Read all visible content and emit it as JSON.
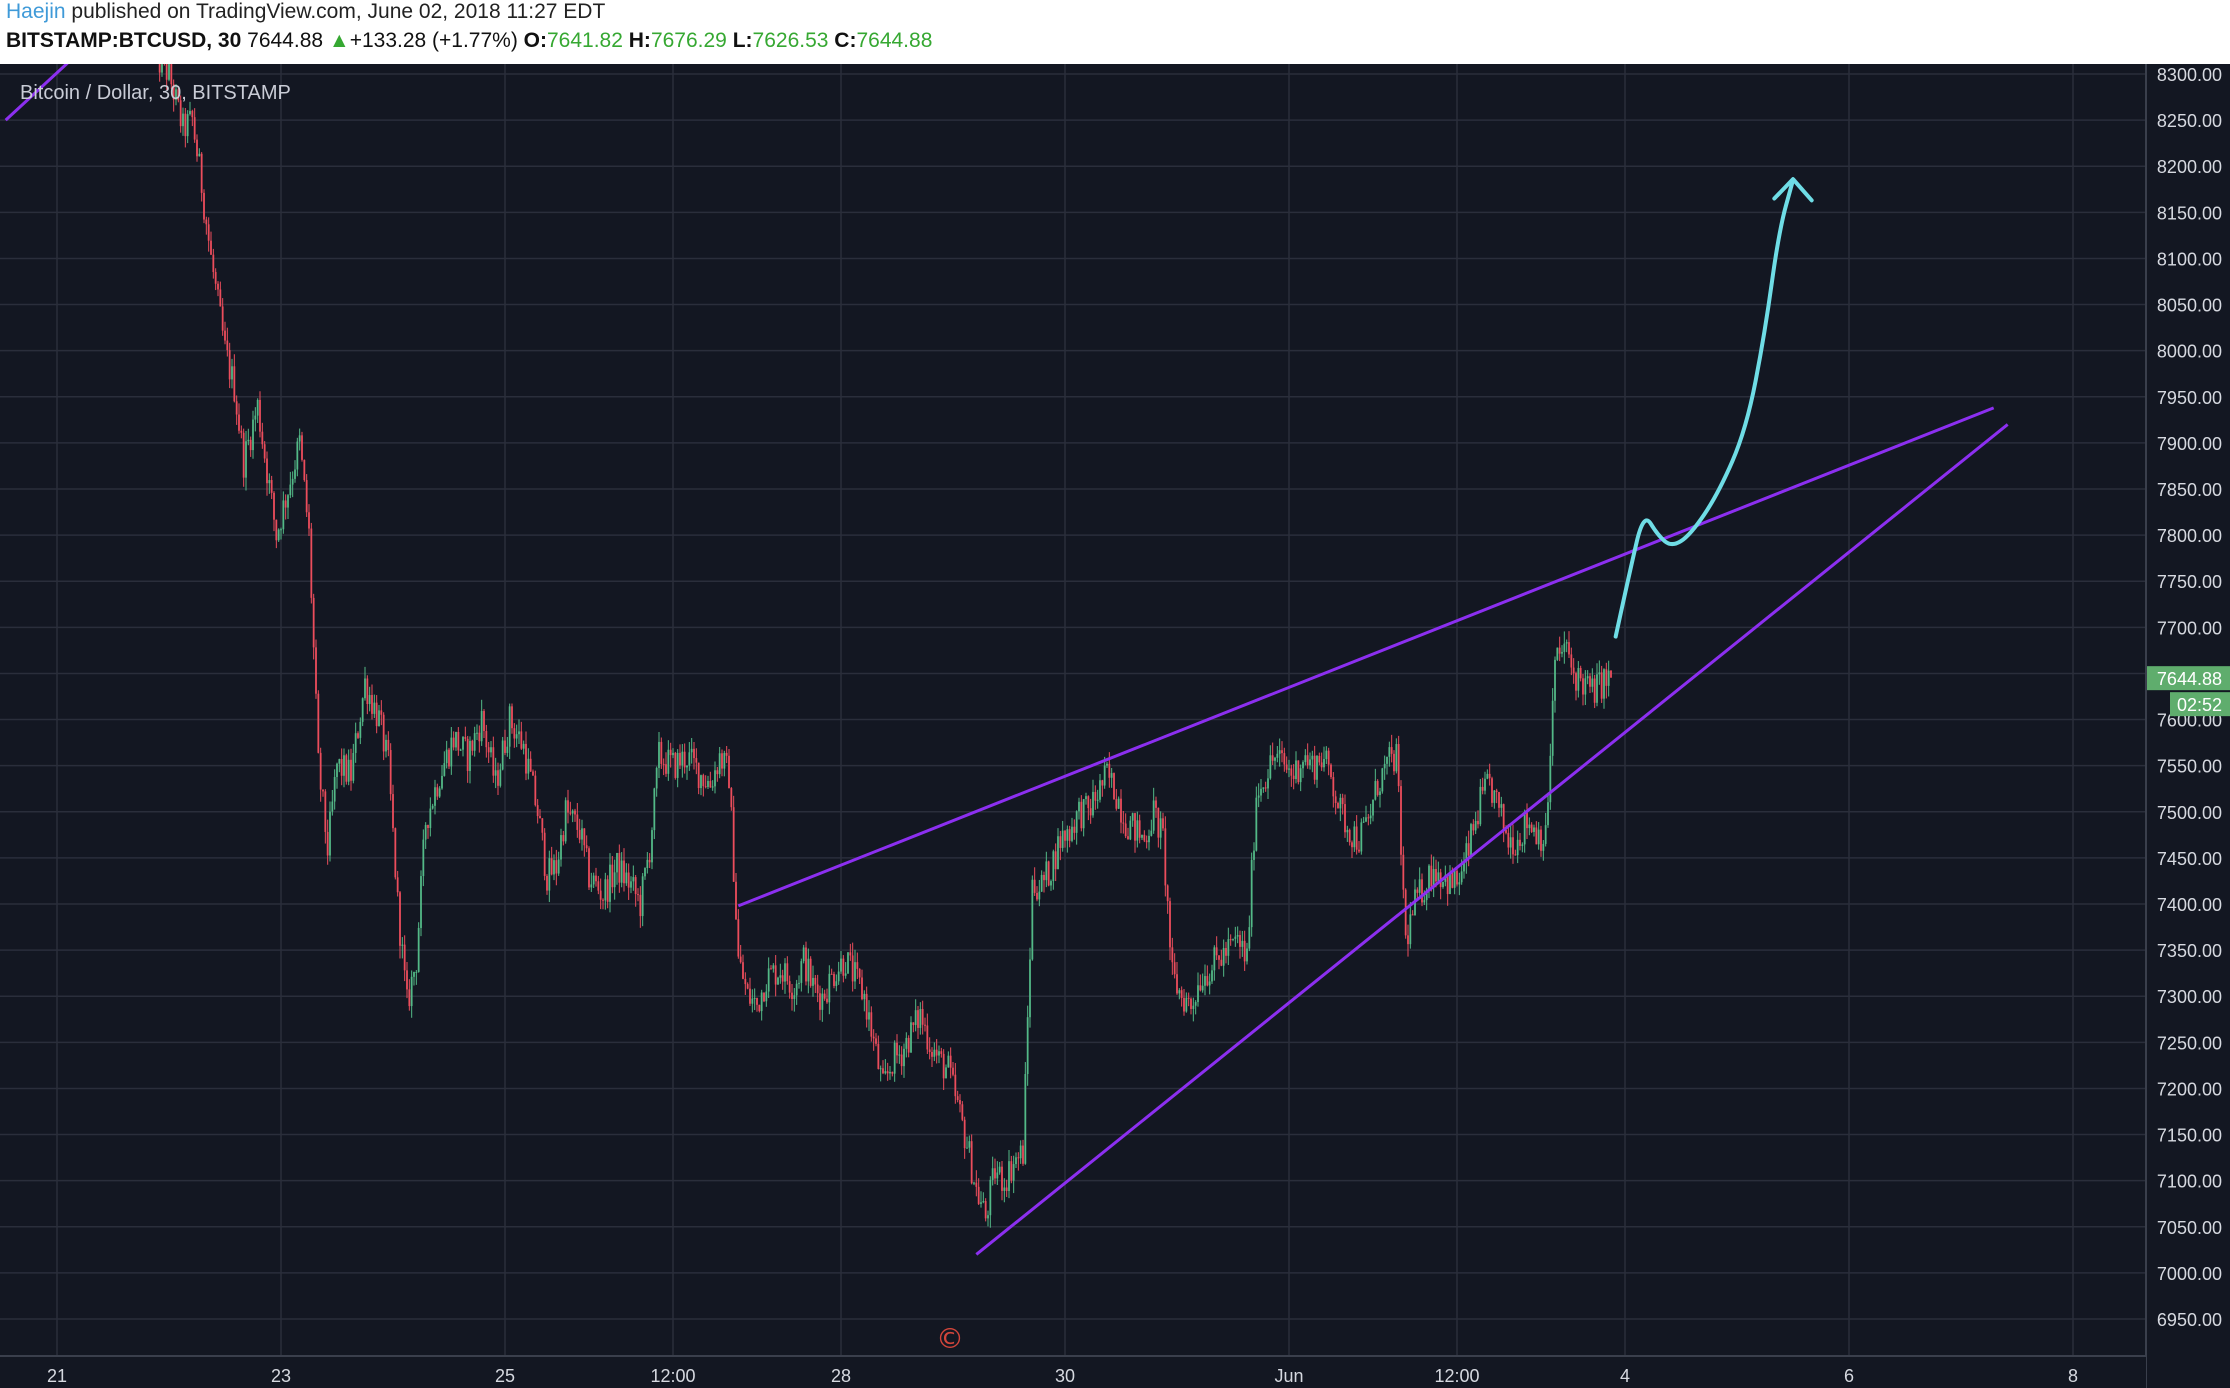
{
  "header": {
    "author": "Haejin",
    "published_text": "published on TradingView.com, June 02, 2018 11:27 EDT",
    "symbol": "BITSTAMP:BTCUSD, 30",
    "last_price": "7644.88",
    "change_arrow": "▲",
    "change": "+133.28 (+1.77%)",
    "open_label": "O:",
    "open": "7641.82",
    "high_label": "H:",
    "high": "7676.29",
    "low_label": "L:",
    "low": "7626.53",
    "close_label": "C:",
    "close": "7644.88"
  },
  "chart_data": {
    "type": "candlestick",
    "title": "Bitcoin / Dollar, 30, BITSTAMP",
    "ylim": [
      6925,
      8310
    ],
    "y_ticks": [
      "8300.00",
      "8250.00",
      "8200.00",
      "8150.00",
      "8100.00",
      "8050.00",
      "8000.00",
      "7950.00",
      "7900.00",
      "7850.00",
      "7800.00",
      "7750.00",
      "7700.00",
      "7650.00",
      "7600.00",
      "7550.00",
      "7500.00",
      "7450.00",
      "7400.00",
      "7350.00",
      "7300.00",
      "7250.00",
      "7200.00",
      "7150.00",
      "7100.00",
      "7050.00",
      "7000.00",
      "6950.00"
    ],
    "time_range_hours": [
      0,
      432
    ],
    "x_ticks": [
      {
        "label": "21",
        "t": 0
      },
      {
        "label": "23",
        "t": 48
      },
      {
        "label": "25",
        "t": 96
      },
      {
        "label": "12:00",
        "t": 132
      },
      {
        "label": "28",
        "t": 168
      },
      {
        "label": "30",
        "t": 216
      },
      {
        "label": "Jun",
        "t": 264
      },
      {
        "label": "12:00",
        "t": 300
      },
      {
        "label": "4",
        "t": 336
      },
      {
        "label": "6",
        "t": 384
      },
      {
        "label": "8",
        "t": 432
      }
    ],
    "price_path": [
      [
        21,
        8320
      ],
      [
        24,
        8300
      ],
      [
        27,
        8240
      ],
      [
        29,
        8250
      ],
      [
        31,
        8180
      ],
      [
        33,
        8100
      ],
      [
        36,
        8000
      ],
      [
        38,
        7960
      ],
      [
        40,
        7880
      ],
      [
        43,
        7940
      ],
      [
        45,
        7870
      ],
      [
        47,
        7800
      ],
      [
        49,
        7840
      ],
      [
        52,
        7900
      ],
      [
        54,
        7800
      ],
      [
        56,
        7550
      ],
      [
        58,
        7460
      ],
      [
        60,
        7550
      ],
      [
        63,
        7540
      ],
      [
        66,
        7640
      ],
      [
        69,
        7600
      ],
      [
        71,
        7550
      ],
      [
        73,
        7400
      ],
      [
        75,
        7290
      ],
      [
        77,
        7340
      ],
      [
        79,
        7490
      ],
      [
        82,
        7540
      ],
      [
        85,
        7580
      ],
      [
        88,
        7560
      ],
      [
        91,
        7600
      ],
      [
        94,
        7530
      ],
      [
        97,
        7600
      ],
      [
        100,
        7570
      ],
      [
        103,
        7500
      ],
      [
        105,
        7430
      ],
      [
        107,
        7440
      ],
      [
        109,
        7500
      ],
      [
        112,
        7480
      ],
      [
        114,
        7430
      ],
      [
        117,
        7410
      ],
      [
        120,
        7440
      ],
      [
        123,
        7420
      ],
      [
        125,
        7400
      ],
      [
        127,
        7460
      ],
      [
        129,
        7560
      ],
      [
        132,
        7550
      ],
      [
        135,
        7560
      ],
      [
        138,
        7540
      ],
      [
        140,
        7530
      ],
      [
        142,
        7560
      ],
      [
        144,
        7540
      ],
      [
        146,
        7340
      ],
      [
        148,
        7300
      ],
      [
        150,
        7290
      ],
      [
        152,
        7320
      ],
      [
        155,
        7330
      ],
      [
        158,
        7310
      ],
      [
        160,
        7340
      ],
      [
        162,
        7310
      ],
      [
        164,
        7300
      ],
      [
        167,
        7330
      ],
      [
        169,
        7340
      ],
      [
        171,
        7320
      ],
      [
        173,
        7300
      ],
      [
        175,
        7250
      ],
      [
        177,
        7200
      ],
      [
        179,
        7230
      ],
      [
        181,
        7240
      ],
      [
        183,
        7260
      ],
      [
        185,
        7280
      ],
      [
        187,
        7250
      ],
      [
        189,
        7230
      ],
      [
        191,
        7220
      ],
      [
        193,
        7180
      ],
      [
        195,
        7140
      ],
      [
        197,
        7090
      ],
      [
        199,
        7060
      ],
      [
        201,
        7110
      ],
      [
        203,
        7100
      ],
      [
        205,
        7120
      ],
      [
        207,
        7130
      ],
      [
        209,
        7420
      ],
      [
        211,
        7420
      ],
      [
        213,
        7440
      ],
      [
        215,
        7470
      ],
      [
        217,
        7480
      ],
      [
        219,
        7500
      ],
      [
        221,
        7500
      ],
      [
        223,
        7520
      ],
      [
        225,
        7540
      ],
      [
        227,
        7520
      ],
      [
        229,
        7490
      ],
      [
        231,
        7480
      ],
      [
        233,
        7470
      ],
      [
        235,
        7500
      ],
      [
        237,
        7470
      ],
      [
        239,
        7320
      ],
      [
        241,
        7300
      ],
      [
        243,
        7290
      ],
      [
        245,
        7320
      ],
      [
        247,
        7330
      ],
      [
        249,
        7340
      ],
      [
        251,
        7350
      ],
      [
        253,
        7360
      ],
      [
        255,
        7340
      ],
      [
        257,
        7520
      ],
      [
        259,
        7540
      ],
      [
        261,
        7560
      ],
      [
        263,
        7550
      ],
      [
        265,
        7540
      ],
      [
        267,
        7560
      ],
      [
        269,
        7550
      ],
      [
        271,
        7560
      ],
      [
        273,
        7540
      ],
      [
        275,
        7500
      ],
      [
        277,
        7480
      ],
      [
        279,
        7470
      ],
      [
        281,
        7490
      ],
      [
        283,
        7530
      ],
      [
        285,
        7550
      ],
      [
        287,
        7560
      ],
      [
        289,
        7360
      ],
      [
        291,
        7400
      ],
      [
        293,
        7420
      ],
      [
        295,
        7440
      ],
      [
        297,
        7430
      ],
      [
        299,
        7420
      ],
      [
        301,
        7430
      ],
      [
        303,
        7470
      ],
      [
        305,
        7510
      ],
      [
        307,
        7530
      ],
      [
        309,
        7500
      ],
      [
        311,
        7470
      ],
      [
        313,
        7470
      ],
      [
        315,
        7490
      ],
      [
        317,
        7480
      ],
      [
        319,
        7470
      ],
      [
        321,
        7660
      ],
      [
        323,
        7680
      ],
      [
        325,
        7650
      ],
      [
        327,
        7640
      ],
      [
        329,
        7630
      ],
      [
        331,
        7640
      ],
      [
        333,
        7645
      ]
    ],
    "last_price_label": "7644.88",
    "countdown_label": "02:52",
    "annotations": [
      {
        "type": "trendline",
        "name": "upper-wedge-line",
        "points": [
          [
            146,
            7398
          ],
          [
            415,
            7938
          ]
        ]
      },
      {
        "type": "trendline",
        "name": "lower-wedge-line",
        "points": [
          [
            197,
            7020
          ],
          [
            418,
            7920
          ]
        ]
      },
      {
        "type": "trendline",
        "name": "earlier-trendline",
        "points": [
          [
            -11,
            8250
          ],
          [
            4,
            8320
          ]
        ]
      },
      {
        "type": "curve",
        "name": "projected-path",
        "points": [
          [
            334,
            7690
          ],
          [
            337,
            7760
          ],
          [
            340,
            7825
          ],
          [
            343,
            7800
          ],
          [
            346,
            7787
          ],
          [
            350,
            7800
          ],
          [
            356,
            7845
          ],
          [
            362,
            7915
          ],
          [
            366,
            8020
          ],
          [
            369,
            8130
          ],
          [
            372,
            8185
          ]
        ]
      },
      {
        "type": "arrowhead",
        "name": "projected-path-arrow-head",
        "points": [
          [
            368,
            8165
          ],
          [
            372,
            8186
          ],
          [
            376,
            8163
          ]
        ]
      }
    ],
    "watermark": "©",
    "colors": {
      "background": "#131722",
      "grid": "#2a2e3b",
      "up": "#53b987",
      "down": "#eb4d5c",
      "trendline": "#8c2ff0",
      "projection": "#6fdde6",
      "last_price_badge": "#5fad6d"
    }
  }
}
